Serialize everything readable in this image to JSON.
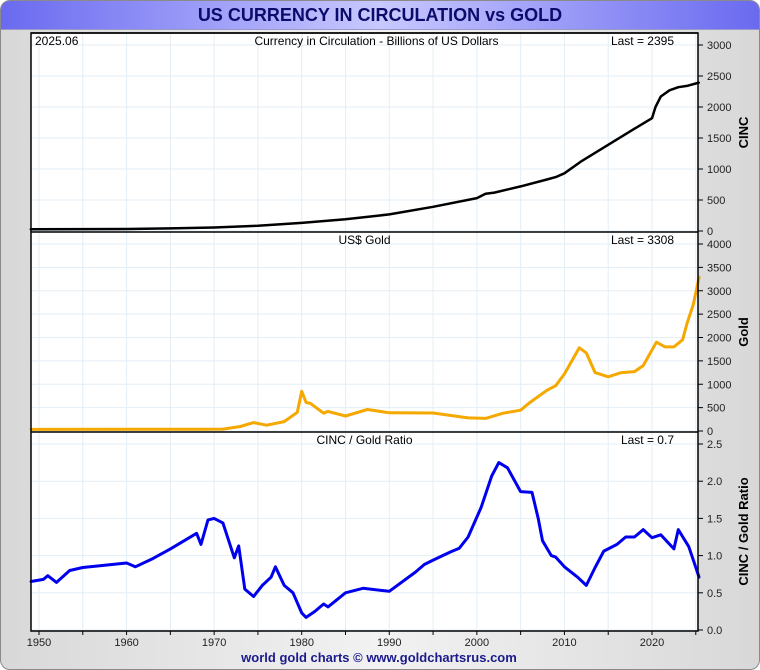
{
  "window": {
    "title": "US CURRENCY IN CIRCULATION vs GOLD",
    "footer": "world gold charts © www.goldchartsrus.com",
    "date_label": "2025.06"
  },
  "chart_data": [
    {
      "type": "line",
      "title": "Currency in Circulation - Billions of US Dollars",
      "last_label": "Last = 2395",
      "ylabel": "CINC",
      "ylim": [
        0,
        3000
      ],
      "yticks": [
        0,
        500,
        1000,
        1500,
        2000,
        2500,
        3000
      ],
      "color": "#000000",
      "x": [
        1949,
        1955,
        1960,
        1965,
        1970,
        1975,
        1980,
        1985,
        1990,
        1995,
        2000,
        2001,
        2002,
        2005,
        2008,
        2009,
        2010,
        2012,
        2015,
        2018,
        2020,
        2020.4,
        2021,
        2022,
        2023,
        2024,
        2025.4
      ],
      "values": [
        28,
        31,
        33,
        42,
        57,
        86,
        130,
        190,
        268,
        390,
        530,
        600,
        620,
        720,
        830,
        870,
        930,
        1130,
        1390,
        1650,
        1820,
        2000,
        2170,
        2270,
        2320,
        2340,
        2395
      ]
    },
    {
      "type": "line",
      "title": "US$ Gold",
      "last_label": "Last = 3308",
      "ylabel": "Gold",
      "ylim": [
        0,
        4000
      ],
      "yticks": [
        0,
        500,
        1000,
        1500,
        2000,
        2500,
        3000,
        3500,
        4000
      ],
      "color": "#f5a800",
      "x": [
        1949,
        1968,
        1971,
        1973,
        1974.5,
        1976,
        1978,
        1979.5,
        1980,
        1980.5,
        1981,
        1982.5,
        1983,
        1985,
        1987.5,
        1990,
        1995,
        1999,
        2001,
        2003,
        2005,
        2006,
        2008,
        2009,
        2010,
        2011.7,
        2012.5,
        2013.5,
        2015,
        2016.5,
        2018,
        2019,
        2020.5,
        2021.5,
        2022.5,
        2023.5,
        2024,
        2024.7,
        2025.4
      ],
      "values": [
        35,
        38,
        40,
        97,
        180,
        125,
        200,
        400,
        850,
        610,
        590,
        380,
        420,
        320,
        460,
        390,
        385,
        280,
        270,
        380,
        445,
        600,
        870,
        970,
        1220,
        1780,
        1670,
        1250,
        1160,
        1250,
        1270,
        1400,
        1900,
        1800,
        1800,
        1950,
        2300,
        2700,
        3308
      ]
    },
    {
      "type": "line",
      "title": "CINC / Gold Ratio",
      "last_label": "Last = 0.7",
      "ylabel": "CINC / Gold Ratio",
      "ylim": [
        0,
        2.5
      ],
      "yticks": [
        "0.0",
        "0.5",
        "1.0",
        "1.5",
        "2.0",
        "2.5"
      ],
      "color": "#0000ee",
      "x": [
        1949,
        1950.5,
        1951,
        1952,
        1953.5,
        1955,
        1960,
        1961,
        1963,
        1965,
        1968,
        1968.5,
        1969.3,
        1970,
        1971,
        1972.3,
        1972.8,
        1973.5,
        1974.5,
        1975.5,
        1976.5,
        1977,
        1978,
        1979,
        1980,
        1980.5,
        1981.5,
        1982.5,
        1983,
        1985,
        1987,
        1990,
        1993,
        1994,
        1995,
        1997,
        1998,
        1999,
        2000.5,
        2001.7,
        2002.5,
        2003.5,
        2005,
        2006.3,
        2007,
        2007.5,
        2008.5,
        2009,
        2010,
        2011.5,
        2012.5,
        2013.5,
        2014.5,
        2016,
        2017,
        2018,
        2019,
        2020,
        2021,
        2022.5,
        2023,
        2024.2,
        2025.4
      ],
      "values": [
        0.65,
        0.68,
        0.73,
        0.64,
        0.8,
        0.84,
        0.9,
        0.85,
        0.96,
        1.09,
        1.3,
        1.15,
        1.48,
        1.5,
        1.44,
        0.97,
        1.13,
        0.55,
        0.45,
        0.6,
        0.71,
        0.85,
        0.6,
        0.5,
        0.23,
        0.17,
        0.25,
        0.35,
        0.31,
        0.5,
        0.56,
        0.52,
        0.78,
        0.88,
        0.94,
        1.05,
        1.1,
        1.25,
        1.65,
        2.07,
        2.25,
        2.18,
        1.86,
        1.85,
        1.5,
        1.2,
        1.0,
        0.98,
        0.85,
        0.71,
        0.6,
        0.84,
        1.06,
        1.15,
        1.25,
        1.25,
        1.35,
        1.24,
        1.28,
        1.09,
        1.35,
        1.12,
        0.7
      ]
    }
  ],
  "x_axis": {
    "xlim": [
      1949,
      2025.6
    ],
    "ticks": [
      "1950",
      "1960",
      "1970",
      "1980",
      "1990",
      "2000",
      "2010",
      "2020"
    ],
    "tick_values": [
      1950,
      1960,
      1970,
      1980,
      1990,
      2000,
      2010,
      2020
    ]
  }
}
